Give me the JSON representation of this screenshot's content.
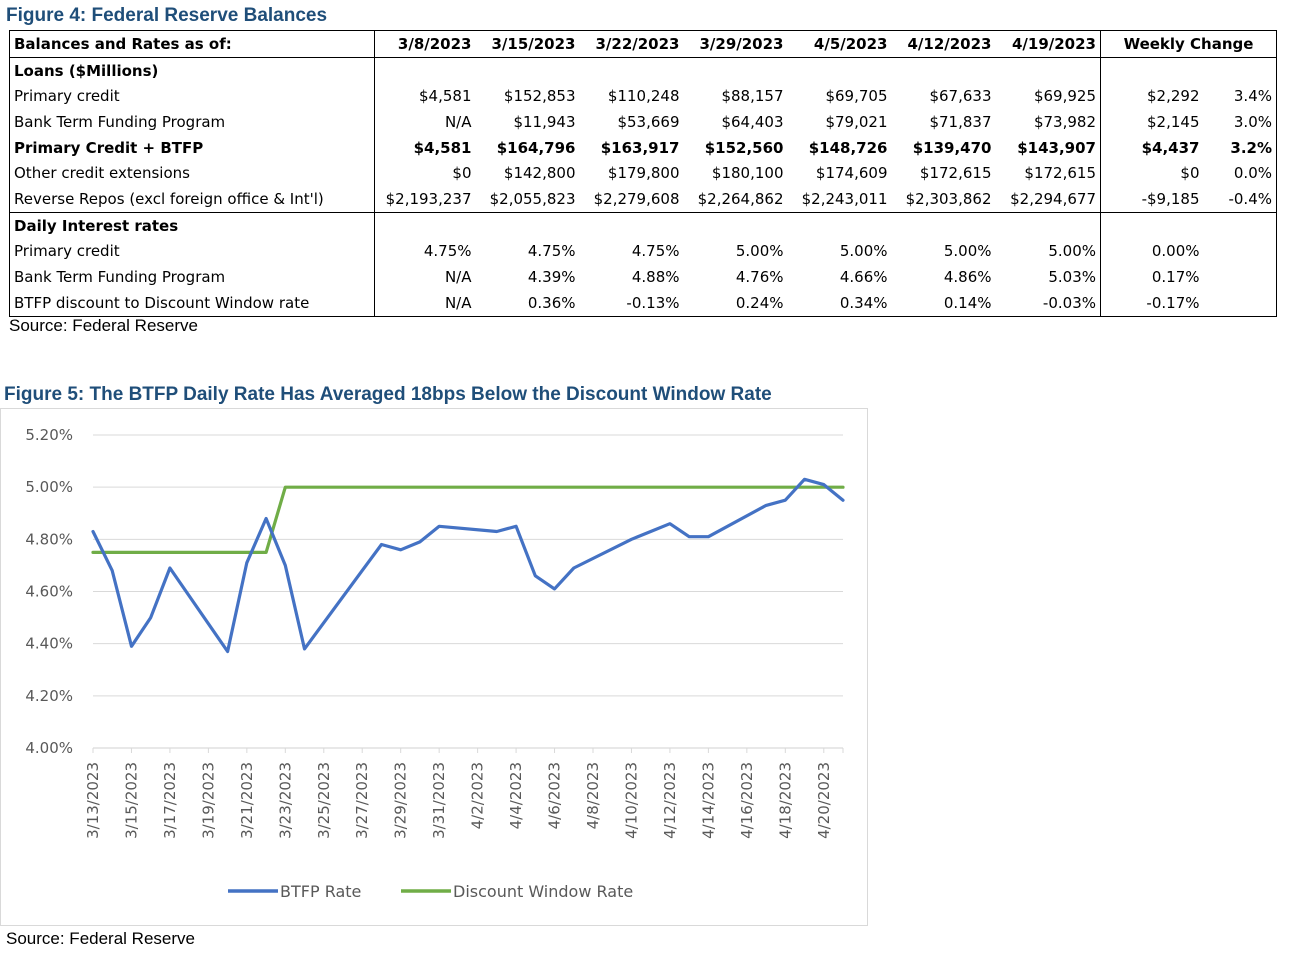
{
  "figure4": {
    "title": "Figure 4: Federal Reserve Balances",
    "source": "Source: Federal Reserve",
    "header": {
      "label": "Balances and Rates as of:",
      "dates": [
        "3/8/2023",
        "3/15/2023",
        "3/22/2023",
        "3/29/2023",
        "4/5/2023",
        "4/12/2023",
        "4/19/2023"
      ],
      "weekly_change": "Weekly Change"
    },
    "loans_section": "Loans ($Millions)",
    "loan_rows": [
      {
        "label": "Primary credit",
        "values": [
          "$4,581",
          "$152,853",
          "$110,248",
          "$88,157",
          "$69,705",
          "$67,633",
          "$69,925"
        ],
        "change": "$2,292",
        "change_pct": "3.4%",
        "bold": false
      },
      {
        "label": "Bank Term Funding Program",
        "values": [
          "N/A",
          "$11,943",
          "$53,669",
          "$64,403",
          "$79,021",
          "$71,837",
          "$73,982"
        ],
        "change": "$2,145",
        "change_pct": "3.0%",
        "bold": false
      },
      {
        "label": "Primary Credit + BTFP",
        "values": [
          "$4,581",
          "$164,796",
          "$163,917",
          "$152,560",
          "$148,726",
          "$139,470",
          "$143,907"
        ],
        "change": "$4,437",
        "change_pct": "3.2%",
        "bold": true
      },
      {
        "label": "Other credit extensions",
        "values": [
          "$0",
          "$142,800",
          "$179,800",
          "$180,100",
          "$174,609",
          "$172,615",
          "$172,615"
        ],
        "change": "$0",
        "change_pct": "0.0%",
        "bold": false
      },
      {
        "label": "Reverse Repos (excl foreign office & Int'l)",
        "values": [
          "$2,193,237",
          "$2,055,823",
          "$2,279,608",
          "$2,264,862",
          "$2,243,011",
          "$2,303,862",
          "$2,294,677"
        ],
        "change": "-$9,185",
        "change_pct": "-0.4%",
        "bold": false
      }
    ],
    "rates_section": "Daily Interest rates",
    "rate_rows": [
      {
        "label": "Primary credit",
        "values": [
          "4.75%",
          "4.75%",
          "4.75%",
          "5.00%",
          "5.00%",
          "5.00%",
          "5.00%"
        ],
        "change": "0.00%"
      },
      {
        "label": "Bank Term Funding Program",
        "values": [
          "N/A",
          "4.39%",
          "4.88%",
          "4.76%",
          "4.66%",
          "4.86%",
          "5.03%"
        ],
        "change": "0.17%"
      },
      {
        "label": "BTFP discount to Discount Window rate",
        "values": [
          "N/A",
          "0.36%",
          "-0.13%",
          "0.24%",
          "0.34%",
          "0.14%",
          "-0.03%"
        ],
        "change": "-0.17%"
      }
    ]
  },
  "figure5": {
    "title": "Figure 5: The BTFP Daily Rate Has Averaged 18bps Below the Discount Window Rate",
    "source": "Source: Federal Reserve"
  },
  "chart_data": {
    "type": "line",
    "title": "Figure 5: The BTFP Daily Rate Has Averaged 18bps Below the Discount Window Rate",
    "xlabel": "",
    "ylabel": "",
    "ylim": [
      4.0,
      5.2
    ],
    "yticks": [
      "4.00%",
      "4.20%",
      "4.40%",
      "4.60%",
      "4.80%",
      "5.00%",
      "5.20%"
    ],
    "xlim": [
      "3/13/2023",
      "4/21/2023"
    ],
    "xticks": [
      "3/13/2023",
      "3/15/2023",
      "3/17/2023",
      "3/19/2023",
      "3/21/2023",
      "3/23/2023",
      "3/25/2023",
      "3/27/2023",
      "3/29/2023",
      "3/31/2023",
      "4/2/2023",
      "4/4/2023",
      "4/6/2023",
      "4/8/2023",
      "4/10/2023",
      "4/12/2023",
      "4/14/2023",
      "4/16/2023",
      "4/18/2023",
      "4/20/2023"
    ],
    "grid": true,
    "legend_position": "bottom",
    "series": [
      {
        "name": "BTFP Rate",
        "color": "#4472c4",
        "points": [
          [
            "3/13/2023",
            4.83
          ],
          [
            "3/14/2023",
            4.68
          ],
          [
            "3/15/2023",
            4.39
          ],
          [
            "3/16/2023",
            4.5
          ],
          [
            "3/17/2023",
            4.69
          ],
          [
            "3/20/2023",
            4.37
          ],
          [
            "3/21/2023",
            4.71
          ],
          [
            "3/22/2023",
            4.88
          ],
          [
            "3/23/2023",
            4.7
          ],
          [
            "3/24/2023",
            4.38
          ],
          [
            "3/27/2023",
            4.68
          ],
          [
            "3/28/2023",
            4.78
          ],
          [
            "3/29/2023",
            4.76
          ],
          [
            "3/30/2023",
            4.79
          ],
          [
            "3/31/2023",
            4.85
          ],
          [
            "4/3/2023",
            4.83
          ],
          [
            "4/4/2023",
            4.85
          ],
          [
            "4/5/2023",
            4.66
          ],
          [
            "4/6/2023",
            4.61
          ],
          [
            "4/7/2023",
            4.69
          ],
          [
            "4/10/2023",
            4.8
          ],
          [
            "4/11/2023",
            4.83
          ],
          [
            "4/12/2023",
            4.86
          ],
          [
            "4/13/2023",
            4.81
          ],
          [
            "4/14/2023",
            4.81
          ],
          [
            "4/17/2023",
            4.93
          ],
          [
            "4/18/2023",
            4.95
          ],
          [
            "4/19/2023",
            5.03
          ],
          [
            "4/20/2023",
            5.01
          ],
          [
            "4/21/2023",
            4.95
          ]
        ]
      },
      {
        "name": "Discount Window Rate",
        "color": "#70ad47",
        "points": [
          [
            "3/13/2023",
            4.75
          ],
          [
            "3/14/2023",
            4.75
          ],
          [
            "3/15/2023",
            4.75
          ],
          [
            "3/16/2023",
            4.75
          ],
          [
            "3/17/2023",
            4.75
          ],
          [
            "3/20/2023",
            4.75
          ],
          [
            "3/21/2023",
            4.75
          ],
          [
            "3/22/2023",
            4.75
          ],
          [
            "3/23/2023",
            5.0
          ],
          [
            "3/24/2023",
            5.0
          ],
          [
            "3/27/2023",
            5.0
          ],
          [
            "3/28/2023",
            5.0
          ],
          [
            "3/29/2023",
            5.0
          ],
          [
            "3/30/2023",
            5.0
          ],
          [
            "3/31/2023",
            5.0
          ],
          [
            "4/3/2023",
            5.0
          ],
          [
            "4/4/2023",
            5.0
          ],
          [
            "4/5/2023",
            5.0
          ],
          [
            "4/6/2023",
            5.0
          ],
          [
            "4/7/2023",
            5.0
          ],
          [
            "4/10/2023",
            5.0
          ],
          [
            "4/11/2023",
            5.0
          ],
          [
            "4/12/2023",
            5.0
          ],
          [
            "4/13/2023",
            5.0
          ],
          [
            "4/14/2023",
            5.0
          ],
          [
            "4/17/2023",
            5.0
          ],
          [
            "4/18/2023",
            5.0
          ],
          [
            "4/19/2023",
            5.0
          ],
          [
            "4/20/2023",
            5.0
          ],
          [
            "4/21/2023",
            5.0
          ]
        ]
      }
    ]
  }
}
